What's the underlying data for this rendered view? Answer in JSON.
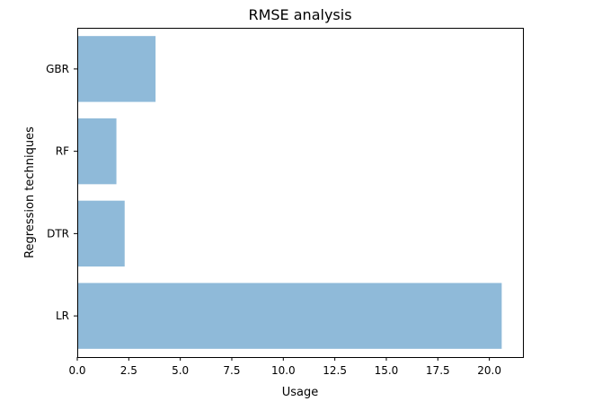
{
  "chart_data": {
    "type": "bar",
    "orientation": "horizontal",
    "title": "RMSE analysis",
    "xlabel": "Usage",
    "ylabel": "Regression techniques",
    "categories": [
      "LR",
      "DTR",
      "RF",
      "GBR"
    ],
    "values": [
      20.6,
      2.3,
      1.9,
      3.8
    ],
    "xlim": [
      0,
      21.63
    ],
    "xticks": [
      0,
      2.5,
      5,
      7.5,
      10,
      12.5,
      15,
      17.5,
      20
    ],
    "xtick_labels": [
      "0.0",
      "2.5",
      "5.0",
      "7.5",
      "10.0",
      "12.5",
      "15.0",
      "17.5",
      "20.0"
    ],
    "grid": false,
    "bar_color": "#8fbad9",
    "bar_alpha": 1.0
  }
}
